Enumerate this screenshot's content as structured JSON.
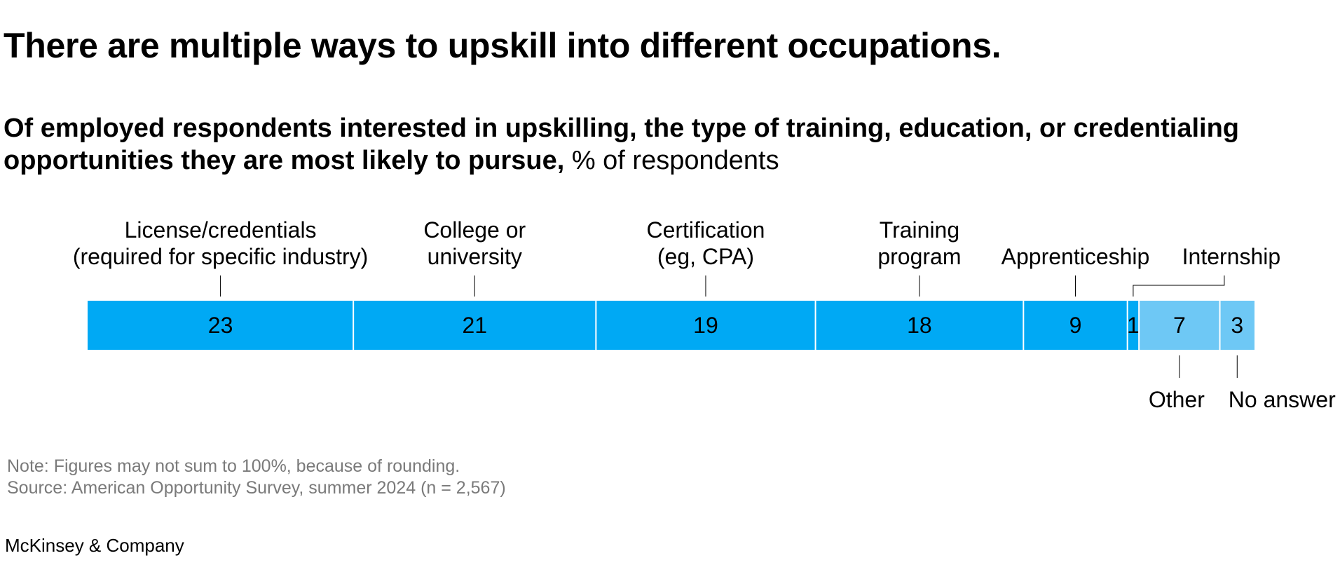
{
  "title": "There are multiple ways to upskill into different occupations.",
  "subtitle": {
    "bold": "Of employed respondents interested in upskilling, the type of training, education, or credentialing opportunities they are most likely to pursue,",
    "unit": "% of respondents"
  },
  "chart_data": {
    "type": "bar",
    "orientation": "horizontal-stacked-single",
    "categories": [
      "License/credentials (required for specific industry)",
      "College or university",
      "Certification (eg, CPA)",
      "Training program",
      "Apprenticeship",
      "Internship",
      "Other",
      "No answer"
    ],
    "label_lines": [
      [
        "License/credentials",
        "(required for specific industry)"
      ],
      [
        "College or",
        "university"
      ],
      [
        "Certification",
        "(eg, CPA)"
      ],
      [
        "Training",
        "program"
      ],
      [
        "Apprenticeship"
      ],
      [
        "Internship"
      ],
      [
        "Other"
      ],
      [
        "No answer"
      ]
    ],
    "values": [
      23,
      21,
      19,
      18,
      9,
      1,
      7,
      3
    ],
    "colors": [
      "#00A9F4",
      "#00A9F4",
      "#00A9F4",
      "#00A9F4",
      "#00A9F4",
      "#00A9F4",
      "#6EC8F5",
      "#6EC8F5"
    ],
    "label_position": [
      "top",
      "top",
      "top",
      "top",
      "top",
      "top",
      "bottom",
      "bottom"
    ],
    "xlim": [
      0,
      101
    ]
  },
  "notes": {
    "note": "Note: Figures may not sum to 100%, because of rounding.",
    "source": "Source: American Opportunity Survey, summer 2024 (n = 2,567)"
  },
  "brand": "McKinsey & Company"
}
